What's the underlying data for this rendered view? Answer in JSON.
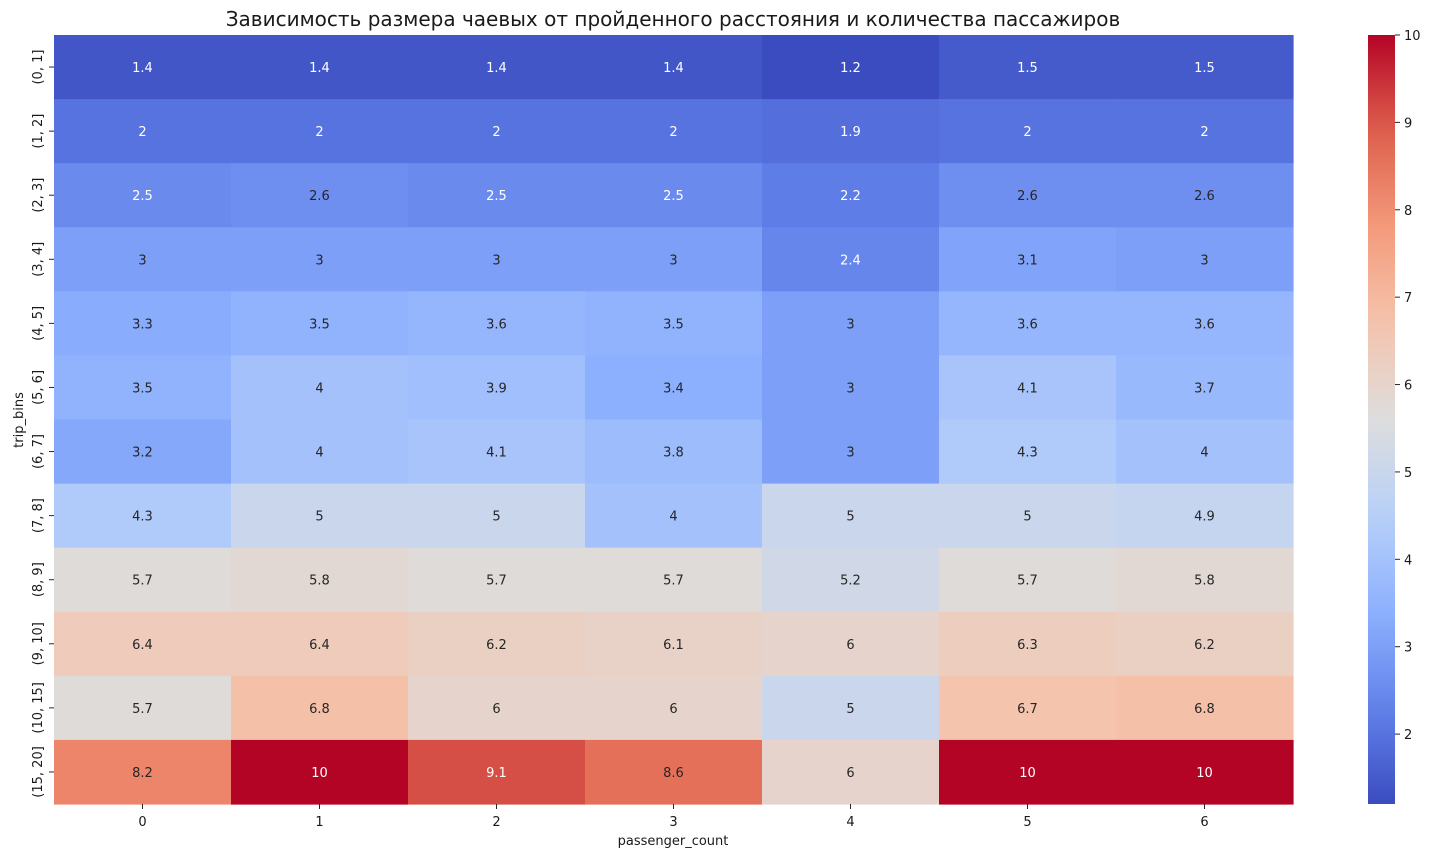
{
  "chart_data": {
    "type": "heatmap",
    "title": "Зависимость размера чаевых от пройденного расстояния и количества пассажиров",
    "xlabel": "passenger_count",
    "ylabel": "trip_bins",
    "x_categories": [
      "0",
      "1",
      "2",
      "3",
      "4",
      "5",
      "6"
    ],
    "y_categories": [
      "(0, 1]",
      "(1, 2]",
      "(2, 3]",
      "(3, 4]",
      "(4, 5]",
      "(5, 6]",
      "(6, 7]",
      "(7, 8]",
      "(8, 9]",
      "(9, 10]",
      "(10, 15]",
      "(15, 20]"
    ],
    "values": [
      [
        1.4,
        1.4,
        1.4,
        1.4,
        1.2,
        1.5,
        1.5
      ],
      [
        2,
        2,
        2,
        2,
        1.9,
        2,
        2
      ],
      [
        2.5,
        2.6,
        2.5,
        2.5,
        2.2,
        2.6,
        2.6
      ],
      [
        3,
        3,
        3,
        3,
        2.4,
        3.1,
        3
      ],
      [
        3.3,
        3.5,
        3.6,
        3.5,
        3,
        3.6,
        3.6
      ],
      [
        3.5,
        4,
        3.9,
        3.4,
        3,
        4.1,
        3.7
      ],
      [
        3.2,
        4,
        4.1,
        3.8,
        3,
        4.3,
        4
      ],
      [
        4.3,
        5,
        5,
        4,
        5,
        5,
        4.9
      ],
      [
        5.7,
        5.8,
        5.7,
        5.7,
        5.2,
        5.7,
        5.8
      ],
      [
        6.4,
        6.4,
        6.2,
        6.1,
        6,
        6.3,
        6.2
      ],
      [
        5.7,
        6.8,
        6,
        6,
        5,
        6.7,
        6.8
      ],
      [
        8.2,
        10,
        9.1,
        8.6,
        6,
        10,
        10
      ]
    ],
    "colormap": "coolwarm",
    "vmin": 1.2,
    "vmax": 10,
    "colorbar_ticks": [
      2,
      3,
      4,
      5,
      6,
      7,
      8,
      9,
      10
    ],
    "annotated": true
  }
}
